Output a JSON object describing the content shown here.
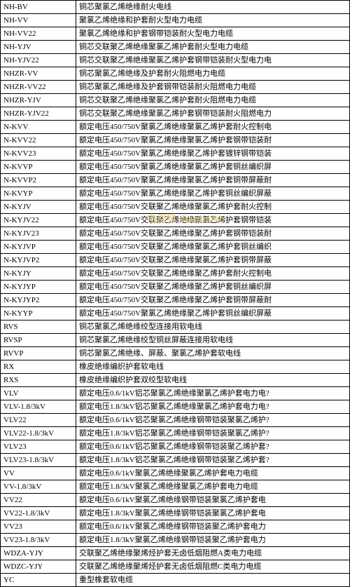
{
  "watermark": "电百科 dianbaike",
  "table": {
    "column_widths": [
      "108px",
      "auto"
    ],
    "border_color": "#000000",
    "background_color": "#ffffff",
    "font_size": 11,
    "rows": [
      {
        "code": "NH-BV",
        "desc": "铜芯聚氯乙烯绝缘耐火电线"
      },
      {
        "code": "NH-VV",
        "desc": "聚氯乙烯绝缘和护套耐火型电力电缆"
      },
      {
        "code": "NH-VV22",
        "desc": "聚氯乙烯绝缘和护套钢带铠装耐火型电力电缆"
      },
      {
        "code": "NH-YJV",
        "desc": "铜芯交联聚乙烯绝缘聚氯乙烯护套耐火型电力电缆"
      },
      {
        "code": "NH-YJV22",
        "desc": "铜芯交联聚乙烯绝缘聚氯乙烯护套钢带铠装耐火型电力电"
      },
      {
        "code": "NHZR-VV",
        "desc": "铜芯聚氯乙烯绝缘及护套耐火阻燃电力电缆"
      },
      {
        "code": "NHZR-VV22",
        "desc": "铜芯聚氯乙烯绝缘及护套钢带铠装耐火阻燃电力电缆"
      },
      {
        "code": "NHZR-YJV",
        "desc": "铜芯交联聚乙烯绝缘聚氯乙烯护套耐火阻燃电力电缆"
      },
      {
        "code": "NHZR-YJV22",
        "desc": "铜芯交联聚乙烯绝缘聚氯乙烯护套钢带铠装耐火阻燃电力"
      },
      {
        "code": "N-KVV",
        "desc": "额定电压450/750V聚氯乙烯绝缘聚氯乙烯护套耐火控制电"
      },
      {
        "code": "N-KVV22",
        "desc": "额定电压450/750V聚氯乙烯绝缘聚氯乙烯护套钢带铠装耐"
      },
      {
        "code": "N-KVV23",
        "desc": "额定电压450/750V聚氯乙烯绝缘聚乙烯护套镀锌钢带铠装"
      },
      {
        "code": "N-KVVP",
        "desc": "额定电压450/750V聚氯乙烯绝缘聚氯乙烯护套铜丝编织屏"
      },
      {
        "code": "N-KVVP2",
        "desc": "额定电压450/750V聚氯乙烯绝缘聚氯乙烯护套铜带屏蔽耐"
      },
      {
        "code": "N-KVYP",
        "desc": "额定电压450/750V聚氯乙烯绝缘聚乙烯护套铜丝编织屏蔽"
      },
      {
        "code": "N-KYJV",
        "desc": "额定电压450/750V交联聚乙烯绝缘聚氯乙烯护套耐火控制"
      },
      {
        "code": "N-KYJV22",
        "desc": "额定电压450/750V交联聚乙烯绝缘聚氯乙烯护套钢带铠装"
      },
      {
        "code": "N-KYJV23",
        "desc": "额定电压450/750V交联聚乙烯绝缘聚乙烯护套钢带铠装耐"
      },
      {
        "code": "N-KYJVP",
        "desc": "额定电压450/750V交联聚乙烯绝缘聚氯乙烯护套铜丝编织"
      },
      {
        "code": "N-KYJVP2",
        "desc": "额定电压450/750V交联聚乙烯绝缘聚氯乙烯护套铜带屏蔽"
      },
      {
        "code": "N-KYJY",
        "desc": "额定电压450/750V交联聚乙烯绝缘聚乙烯护套耐火控制电"
      },
      {
        "code": "N-KYJYP",
        "desc": "额定电压450/750V交联聚乙烯绝缘聚乙烯护套铜丝编织屏"
      },
      {
        "code": "N-KYJYP2",
        "desc": "额定电压450/750V交联聚乙烯绝缘聚乙烯护套铜带屏蔽耐"
      },
      {
        "code": "N-KYYP",
        "desc": "额定电压450/750V聚氯乙烯绝缘聚乙烯护套铜丝编织屏蔽"
      },
      {
        "code": "RVS",
        "desc": "铜芯聚氯乙烯绝缘绞型连接用软电线"
      },
      {
        "code": "RVSP",
        "desc": "铜芯聚氯乙烯绝缘绞型铜丝屏蔽连接用软电线"
      },
      {
        "code": "RVVP",
        "desc": "铜芯聚氯乙烯绝缘、屏蔽、聚氯乙烯护套软电线"
      },
      {
        "code": "RX",
        "desc": "橡皮绝缘编织护套软电线"
      },
      {
        "code": "RXS",
        "desc": "橡皮绝缘编织护套双绞型软电线"
      },
      {
        "code": "VLV",
        "desc": "额定电压0.6/1kV铝芯聚氯乙烯绝缘聚氯乙烯护套电力电?"
      },
      {
        "code": "VLV-1.8/3kV",
        "desc": "额定电压1.8/3kV铝芯聚氯乙烯绝缘聚氯乙烯护套电力电?"
      },
      {
        "code": "VLV22",
        "desc": "额定电压0.6/1kV铝芯聚氯乙烯绝缘钢带铠装聚氯乙烯护?"
      },
      {
        "code": "VLV22-1.8/3kV",
        "desc": "额定电压1.8/3kV铝芯聚氯乙烯绝缘钢带铠装聚氯乙烯护?"
      },
      {
        "code": "VLV23",
        "desc": "额定电压0.6/1kV铝芯聚氯乙烯绝缘钢带铠装聚乙烯护套?"
      },
      {
        "code": "VLV23-1.8/3kV",
        "desc": "额定电压1.8/3kV铝芯聚氯乙烯绝缘钢带铠装聚乙烯护套?"
      },
      {
        "code": "VV",
        "desc": "额定电压0.6/1kV聚氯乙烯绝缘聚氯乙烯护套电力电缆"
      },
      {
        "code": "VV-1.8/3kV",
        "desc": "额定电压1.8/3kV聚氯乙烯绝缘聚氯乙烯护套电力电缆"
      },
      {
        "code": "VV22",
        "desc": "额定电压0.6/1kV聚氯乙烯绝缘钢带铠装聚氯乙烯护套电"
      },
      {
        "code": "VV22-1.8/3kV",
        "desc": "额定电压1.8/3kV聚氯乙烯绝缘钢带铠装聚氯乙烯护套电"
      },
      {
        "code": "VV23",
        "desc": "额定电压0.6/1kV聚氯乙烯绝缘钢带铠装聚乙烯护套电力"
      },
      {
        "code": "VV23-1.8/3kV",
        "desc": "额定电压1.8/3kV聚氯乙烯绝缘钢带铠装聚乙烯护套电力"
      },
      {
        "code": "WDZA-YJY",
        "desc": "交联聚乙烯绝缘聚烯烃护套无卤低烟阻燃A类电力电缆"
      },
      {
        "code": "WDZC-YJY",
        "desc": "交联聚乙烯绝缘聚烯烃护套无卤低烟阻燃C类电力电缆"
      },
      {
        "code": "YC",
        "desc": "重型橡套软电缆"
      }
    ]
  }
}
